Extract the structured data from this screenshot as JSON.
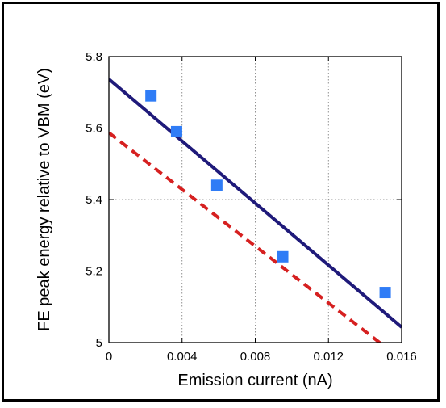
{
  "chart_data": {
    "type": "scatter",
    "title": "",
    "xlabel": "Emission current (nA)",
    "ylabel": "FE peak energy relative to VBM (eV)",
    "xlim": [
      0,
      0.016
    ],
    "ylim": [
      5.0,
      5.8
    ],
    "xticks": [
      0,
      0.004,
      0.008,
      0.012,
      0.016
    ],
    "xtick_labels": [
      "0",
      "0.004",
      "0.008",
      "0.012",
      "0.016"
    ],
    "yticks": [
      5.0,
      5.2,
      5.4,
      5.6,
      5.8
    ],
    "ytick_labels": [
      "5",
      "5.2",
      "5.4",
      "5.6",
      "5.8"
    ],
    "grid": true,
    "grid_style": "dotted",
    "series": [
      {
        "kind": "scatter",
        "marker": "square",
        "color": "#2f7cf6",
        "x": [
          0.0023,
          0.0037,
          0.0059,
          0.0095,
          0.0151
        ],
        "y": [
          5.69,
          5.59,
          5.44,
          5.24,
          5.14
        ]
      },
      {
        "kind": "line",
        "style": "solid",
        "color": "#1f1a7a",
        "x": [
          0,
          0.016
        ],
        "y": [
          5.737,
          5.043
        ]
      },
      {
        "kind": "line",
        "style": "dashed",
        "color": "#d62020",
        "x": [
          0,
          0.0153
        ],
        "y": [
          5.587,
          4.98
        ]
      }
    ]
  }
}
